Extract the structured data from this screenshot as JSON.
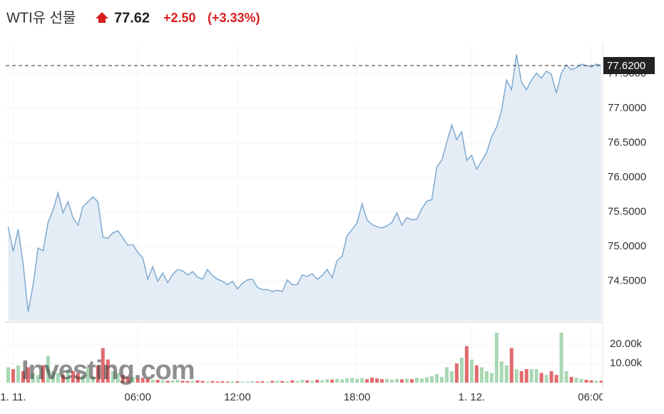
{
  "chart_data": {
    "type": "line",
    "title": "WTI유 선물",
    "price": 77.62,
    "change": {
      "value": 2.5,
      "label": "+2.50"
    },
    "change_percent": {
      "value": 3.33,
      "label": "(+3.33%)"
    },
    "watermark": "Investing.com",
    "line_color": "#7fa9cf",
    "area_color": "#e4edf6",
    "up_color": "#a8d8b4",
    "down_color": "#e06a6e",
    "xlim": [
      -0.5,
      119
    ],
    "xticks": [
      {
        "value": 1,
        "label": "1. 11."
      },
      {
        "value": 26,
        "label": "06:00"
      },
      {
        "value": 46,
        "label": "12:00"
      },
      {
        "value": 70,
        "label": "18:00"
      },
      {
        "value": 93,
        "label": "1. 12."
      },
      {
        "value": 117,
        "label": "06:00"
      }
    ],
    "ylim": [
      73.93,
      77.95
    ],
    "yticks": [
      {
        "value": 74.5,
        "label": "74.5000"
      },
      {
        "value": 75,
        "label": "75.0000"
      },
      {
        "value": 75.5,
        "label": "75.5000"
      },
      {
        "value": 76,
        "label": "76.0000"
      },
      {
        "value": 76.5,
        "label": "76.5000"
      },
      {
        "value": 77,
        "label": "77.0000"
      },
      {
        "value": 77.5,
        "label": "77.5000"
      }
    ],
    "last_price": {
      "value": 77.62,
      "label": "77.6200"
    },
    "series": [
      {
        "name": "WTI유 선물",
        "values": [
          75.29,
          74.93,
          75.25,
          74.75,
          74.06,
          74.45,
          74.98,
          74.94,
          75.35,
          75.53,
          75.78,
          75.49,
          75.65,
          75.42,
          75.31,
          75.58,
          75.65,
          75.72,
          75.65,
          75.14,
          75.12,
          75.2,
          75.23,
          75.13,
          75.02,
          75.03,
          74.92,
          74.84,
          74.53,
          74.71,
          74.5,
          74.62,
          74.48,
          74.6,
          74.67,
          74.65,
          74.59,
          74.64,
          74.56,
          74.53,
          74.67,
          74.58,
          74.53,
          74.5,
          74.45,
          74.5,
          74.39,
          74.47,
          74.52,
          74.53,
          74.41,
          74.38,
          74.38,
          74.35,
          74.37,
          74.35,
          74.52,
          74.45,
          74.45,
          74.59,
          74.57,
          74.61,
          74.53,
          74.58,
          74.67,
          74.55,
          74.8,
          74.86,
          75.16,
          75.25,
          75.34,
          75.62,
          75.39,
          75.32,
          75.29,
          75.27,
          75.3,
          75.35,
          75.49,
          75.31,
          75.42,
          75.39,
          75.4,
          75.55,
          75.66,
          75.68,
          76.15,
          76.25,
          76.51,
          76.76,
          76.55,
          76.66,
          76.25,
          76.32,
          76.12,
          76.24,
          76.36,
          76.59,
          76.73,
          76.97,
          77.41,
          77.27,
          77.78,
          77.38,
          77.27,
          77.41,
          77.51,
          77.44,
          77.54,
          77.49,
          77.22,
          77.51,
          77.63,
          77.56,
          77.59,
          77.64,
          77.62,
          77.6,
          77.64,
          77.62
        ]
      }
    ],
    "volume": {
      "ylim": [
        0,
        30000
      ],
      "yticks": [
        {
          "value": 10000,
          "label": "10.00k"
        },
        {
          "value": 20000,
          "label": "20.00k"
        }
      ],
      "values": [
        8000,
        7000,
        9000,
        6000,
        8000,
        5000,
        4000,
        9000,
        14000,
        6000,
        5000,
        4000,
        7000,
        6000,
        5000,
        4000,
        8000,
        3000,
        9000,
        18000,
        12000,
        6000,
        5000,
        4000,
        3000,
        3000,
        2000,
        2500,
        2000,
        1500,
        1500,
        1200,
        1000,
        1200,
        1500,
        1000,
        800,
        1000,
        1200,
        900,
        700,
        800,
        600,
        700,
        500,
        600,
        700,
        500,
        600,
        800,
        600,
        700,
        500,
        900,
        1000,
        800,
        700,
        1200,
        900,
        1500,
        1200,
        1000,
        1500,
        1300,
        1800,
        1600,
        2000,
        1700,
        2200,
        2500,
        2000,
        2400,
        1800,
        2600,
        2200,
        1800,
        2000,
        1500,
        1900,
        1700,
        2100,
        1800,
        2500,
        2200,
        2800,
        3500,
        4500,
        3000,
        8000,
        6000,
        10000,
        13000,
        19000,
        12000,
        9000,
        8000,
        6000,
        5000,
        26000,
        11000,
        9000,
        18000,
        7000,
        6000,
        7000,
        7000,
        7000,
        5000,
        4000,
        6000,
        4000,
        26000,
        6000,
        3000,
        2500,
        2000,
        1500,
        1200,
        1000,
        1000
      ]
    }
  }
}
